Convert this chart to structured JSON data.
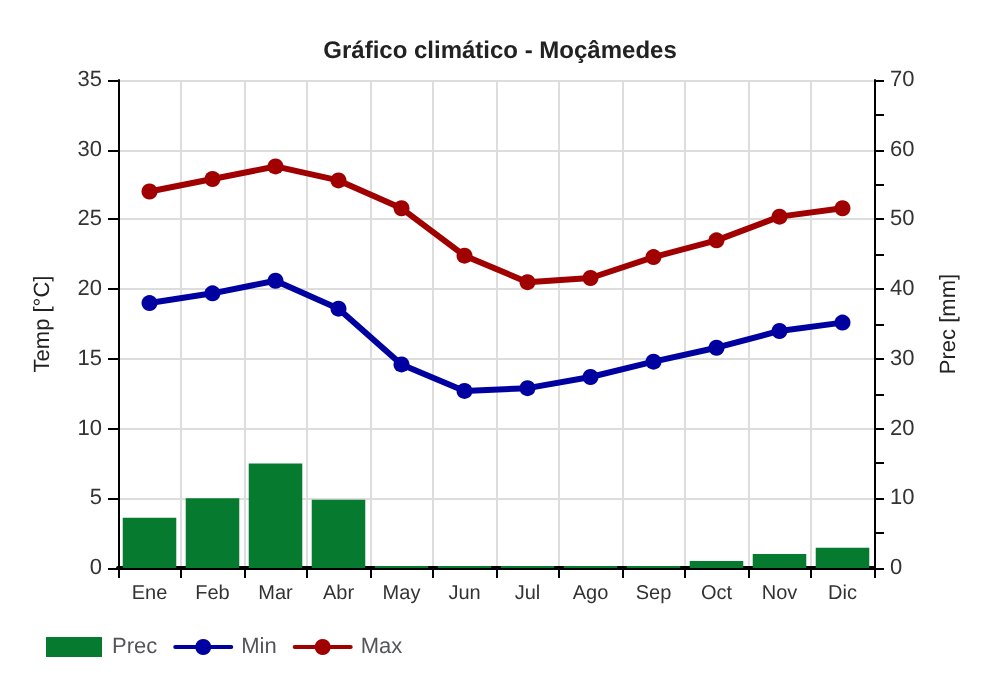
{
  "chart_data": {
    "type": "line",
    "title": "Gráfico climático - Moçâmedes",
    "ylabel": "Temp [°C]",
    "y2label": "Prec [mm]",
    "categories": [
      "Ene",
      "Feb",
      "Mar",
      "Abr",
      "May",
      "Jun",
      "Jul",
      "Ago",
      "Sep",
      "Oct",
      "Nov",
      "Dic"
    ],
    "series": [
      {
        "name": "Prec",
        "type": "bar",
        "axis": "y2",
        "color": "#067a2e",
        "values": [
          7.2,
          10,
          15,
          9.8,
          0.3,
          0.3,
          0.3,
          0.3,
          0.3,
          1,
          2,
          2.9
        ]
      },
      {
        "name": "Min",
        "color": "#0000a0",
        "values": [
          19,
          19.7,
          20.6,
          18.6,
          14.6,
          12.7,
          12.9,
          13.7,
          14.8,
          15.8,
          17,
          17.6
        ]
      },
      {
        "name": "Max",
        "color": "#a00000",
        "values": [
          27,
          27.9,
          28.8,
          27.8,
          25.8,
          22.4,
          20.5,
          20.8,
          22.3,
          23.5,
          25.2,
          25.8
        ]
      }
    ],
    "ylim": [
      0,
      35
    ],
    "yticks": [
      0,
      5,
      10,
      15,
      20,
      25,
      30,
      35
    ],
    "y2lim": [
      0,
      70
    ],
    "y2ticks": [
      0,
      {
        "value": 5,
        "label": null
      },
      10,
      {
        "value": 15,
        "label": null
      },
      20,
      {
        "value": 25,
        "label": null
      },
      30,
      {
        "value": 35,
        "label": null
      },
      40,
      {
        "value": 45,
        "label": null
      },
      50,
      {
        "value": 55,
        "label": null
      },
      60,
      {
        "value": 65,
        "label": null
      },
      70
    ],
    "grid": true,
    "legend": "bottom left",
    "marker": "circle",
    "line_style": "solid"
  }
}
